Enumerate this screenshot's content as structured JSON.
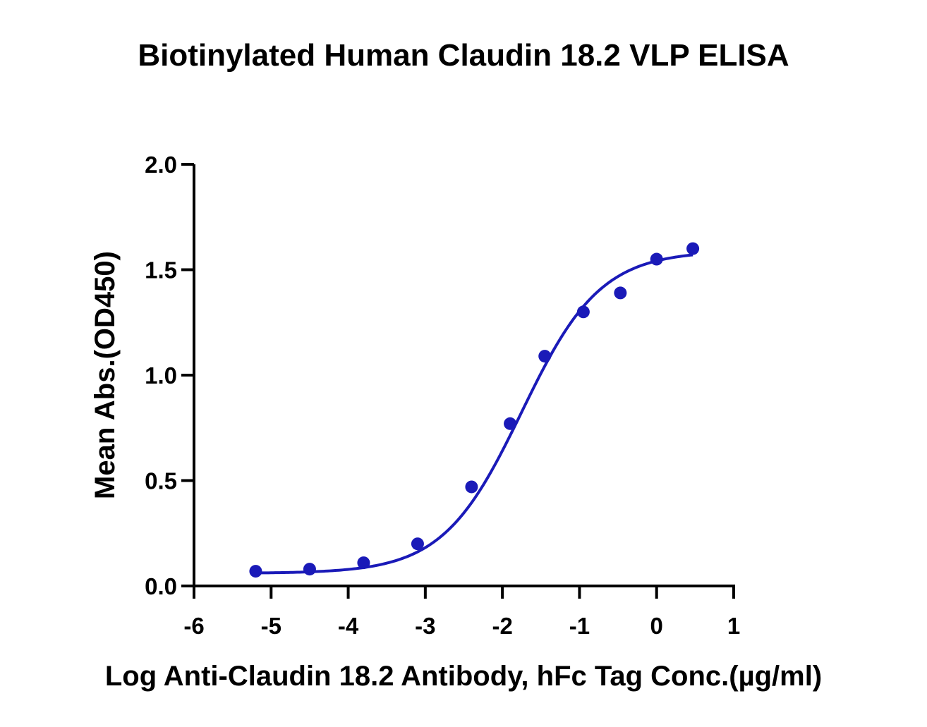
{
  "colors": {
    "series": "#1a1ab8",
    "axis": "#000000",
    "background": "#ffffff"
  },
  "chart_data": {
    "type": "scatter",
    "title": "Biotinylated Human Claudin 18.2 VLP ELISA",
    "xlabel": "Log Anti-Claudin 18.2 Antibody, hFc  Tag Conc.(µg/ml)",
    "ylabel": "Mean Abs.(OD450)",
    "xlim": [
      -6,
      1
    ],
    "ylim": [
      0,
      2
    ],
    "x_ticks": [
      -6,
      -5,
      -4,
      -3,
      -2,
      -1,
      0,
      1
    ],
    "x_tick_labels": [
      "-6",
      "-5",
      "-4",
      "-3",
      "-2",
      "-1",
      "0",
      "1"
    ],
    "y_ticks": [
      0,
      0.5,
      1,
      1.5,
      2
    ],
    "y_tick_labels": [
      "0.0",
      "0.5",
      "1.0",
      "1.5",
      "2.0"
    ],
    "grid": false,
    "legend": "none",
    "points": {
      "x": [
        -5.2,
        -4.5,
        -3.8,
        -3.1,
        -2.4,
        -1.9,
        -1.45,
        -0.95,
        -0.47,
        0.0,
        0.47
      ],
      "y": [
        0.07,
        0.08,
        0.11,
        0.2,
        0.47,
        0.77,
        1.09,
        1.3,
        1.39,
        1.55,
        1.6
      ]
    },
    "fit_curve": {
      "model": "four-parameter logistic",
      "bottom": 0.06,
      "top": 1.59,
      "log_ec50": -1.75,
      "hill_slope": 0.85,
      "x_range": [
        -5.2,
        0.47
      ]
    }
  }
}
